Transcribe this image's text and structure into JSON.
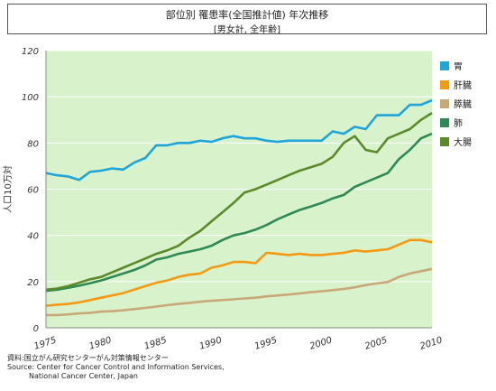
{
  "title": {
    "line1": "部位別 罹患率(全国推計値) 年次推移",
    "line2": "[男女計, 全年齢]"
  },
  "source": {
    "line1": "資料:国立がん研究センターがん対策情報センター",
    "line2": "Source: Center for Cancer Control and Information Services,",
    "line3": "National Cancer Center, Japan"
  },
  "chart_data": {
    "type": "line",
    "ylabel": "人口10万対",
    "xlim": [
      1975,
      2010
    ],
    "ylim": [
      0,
      120
    ],
    "yticks": [
      0,
      20,
      40,
      60,
      80,
      100,
      120
    ],
    "xticks": [
      1975,
      1980,
      1985,
      1990,
      1995,
      2000,
      2005,
      2010
    ],
    "grid": true,
    "legend_position": "right",
    "plot_background": "#d8f2cc",
    "x": [
      1975,
      1976,
      1977,
      1978,
      1979,
      1980,
      1981,
      1982,
      1983,
      1984,
      1985,
      1986,
      1987,
      1988,
      1989,
      1990,
      1991,
      1992,
      1993,
      1994,
      1995,
      1996,
      1997,
      1998,
      1999,
      2000,
      2001,
      2002,
      2003,
      2004,
      2005,
      2006,
      2007,
      2008,
      2009,
      2010
    ],
    "series": [
      {
        "name": "胃",
        "color": "#1fa5d8",
        "values": [
          67,
          66,
          65.5,
          64,
          67.5,
          68,
          69,
          68.5,
          71.5,
          73.5,
          79,
          79,
          80,
          80,
          81,
          80.5,
          82,
          83,
          82,
          82,
          81,
          80.5,
          81,
          81,
          81,
          81,
          85,
          84,
          87,
          86,
          92,
          92,
          92,
          96.5,
          96.5,
          98.5
        ]
      },
      {
        "name": "肝臓",
        "color": "#f49a12",
        "values": [
          9.5,
          10,
          10.3,
          11,
          12,
          13,
          14,
          15,
          16.5,
          18,
          19.5,
          20.5,
          22,
          23,
          23.5,
          26,
          27,
          28.5,
          28.5,
          28,
          32.5,
          32,
          31.5,
          32,
          31.5,
          31.5,
          32,
          32.5,
          33.5,
          33,
          33.5,
          34,
          36,
          38,
          38,
          37
        ]
      },
      {
        "name": "膵臓",
        "color": "#c8a878",
        "values": [
          5.5,
          5.5,
          5.8,
          6.2,
          6.5,
          7,
          7.2,
          7.6,
          8.1,
          8.6,
          9.2,
          9.8,
          10.3,
          10.8,
          11.3,
          11.7,
          12,
          12.3,
          12.7,
          13,
          13.6,
          14,
          14.4,
          14.9,
          15.4,
          15.8,
          16.3,
          16.8,
          17.5,
          18.5,
          19.2,
          19.8,
          22,
          23.5,
          24.5,
          25.5
        ]
      },
      {
        "name": "肺",
        "color": "#2e8a55",
        "values": [
          16,
          16.5,
          17.3,
          18.2,
          19.3,
          20.5,
          22,
          23.5,
          25,
          27,
          29.5,
          30.5,
          32,
          33,
          34,
          35.5,
          38,
          40,
          41,
          42.5,
          44.5,
          47,
          49,
          51,
          52.5,
          54,
          56,
          57.5,
          61,
          63,
          65,
          67,
          73,
          77,
          82,
          84
        ]
      },
      {
        "name": "大腸",
        "color": "#5c8a2a",
        "values": [
          16.5,
          17,
          18,
          19.5,
          21,
          22,
          24,
          26,
          28,
          30,
          32,
          33.5,
          35.5,
          39,
          42,
          46,
          50,
          54,
          58.5,
          60,
          62,
          64,
          66,
          68,
          69.5,
          71,
          74,
          80,
          83,
          77,
          76,
          82,
          84,
          86,
          90,
          93
        ]
      }
    ]
  }
}
